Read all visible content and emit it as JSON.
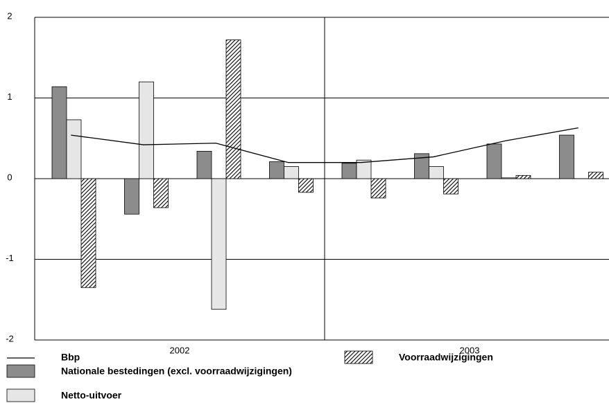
{
  "chart_data": {
    "type": "bar",
    "categories": [
      null,
      null,
      null,
      null,
      null,
      null,
      null,
      null
    ],
    "groups": [
      {
        "label": "2002",
        "size": 4
      },
      {
        "label": "2003",
        "size": 4
      }
    ],
    "series": [
      {
        "name": "Bbp",
        "kind": "line",
        "color": "#000000",
        "values": [
          0.54,
          0.42,
          0.44,
          0.2,
          0.2,
          0.27,
          0.47,
          0.63
        ]
      },
      {
        "name": "Nationale bestedingen (excl. voorraadwijzigingen)",
        "kind": "bar",
        "color": "#8c8c8c",
        "values": [
          1.14,
          -0.44,
          0.34,
          0.21,
          0.19,
          0.31,
          0.43,
          0.54
        ]
      },
      {
        "name": "Netto-uitvoer",
        "kind": "bar",
        "color": "#e6e6e6",
        "values": [
          0.73,
          1.2,
          -1.62,
          0.15,
          0.23,
          0.15,
          0.01,
          0
        ]
      },
      {
        "name": "Voorraadwijzigingen",
        "kind": "bar",
        "color": "hatch",
        "values": [
          -1.35,
          -0.36,
          1.72,
          -0.17,
          -0.24,
          -0.19,
          0.04,
          0.08
        ]
      }
    ],
    "ylim": [
      -2,
      2
    ],
    "yticks": [
      -2,
      -1,
      0,
      1,
      2
    ],
    "grid": true
  }
}
